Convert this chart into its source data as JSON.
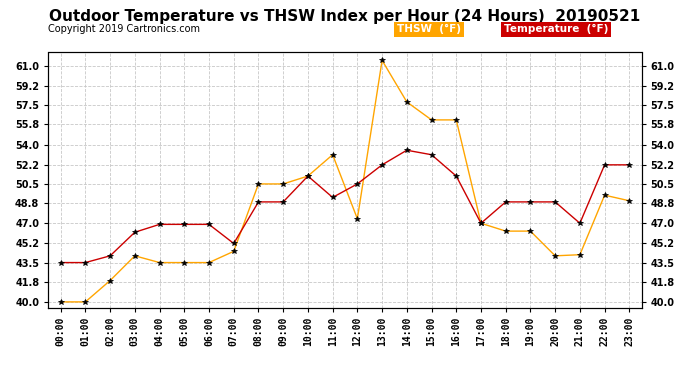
{
  "title": "Outdoor Temperature vs THSW Index per Hour (24 Hours)  20190521",
  "copyright": "Copyright 2019 Cartronics.com",
  "hours": [
    "00:00",
    "01:00",
    "02:00",
    "03:00",
    "04:00",
    "05:00",
    "06:00",
    "07:00",
    "08:00",
    "09:00",
    "10:00",
    "11:00",
    "12:00",
    "13:00",
    "14:00",
    "15:00",
    "16:00",
    "17:00",
    "18:00",
    "19:00",
    "20:00",
    "21:00",
    "22:00",
    "23:00"
  ],
  "temperature": [
    43.5,
    43.5,
    44.1,
    46.2,
    46.9,
    46.9,
    46.9,
    45.2,
    48.9,
    48.9,
    51.2,
    49.3,
    50.5,
    52.2,
    53.5,
    53.1,
    51.2,
    47.0,
    48.9,
    48.9,
    48.9,
    47.0,
    52.2,
    52.2
  ],
  "thsw": [
    40.0,
    40.0,
    41.9,
    44.1,
    43.5,
    43.5,
    43.5,
    44.5,
    50.5,
    50.5,
    51.2,
    53.1,
    47.4,
    61.5,
    57.8,
    56.2,
    56.2,
    47.0,
    46.3,
    46.3,
    44.1,
    44.2,
    49.5,
    49.0
  ],
  "temp_color": "#cc0000",
  "thsw_color": "#ffa500",
  "marker_color": "#000000",
  "marker": "*",
  "marker_size": 4,
  "ylim": [
    39.5,
    62.2
  ],
  "yticks": [
    40.0,
    41.8,
    43.5,
    45.2,
    47.0,
    48.8,
    50.5,
    52.2,
    54.0,
    55.8,
    57.5,
    59.2,
    61.0
  ],
  "bg_color": "#ffffff",
  "grid_color": "#c8c8c8",
  "title_fontsize": 11,
  "tick_fontsize": 7,
  "legend_thsw_bg": "#ffa500",
  "legend_temp_bg": "#cc0000",
  "legend_text_color": "#ffffff",
  "legend_thsw_label": "THSW  (°F)",
  "legend_temp_label": "Temperature  (°F)"
}
